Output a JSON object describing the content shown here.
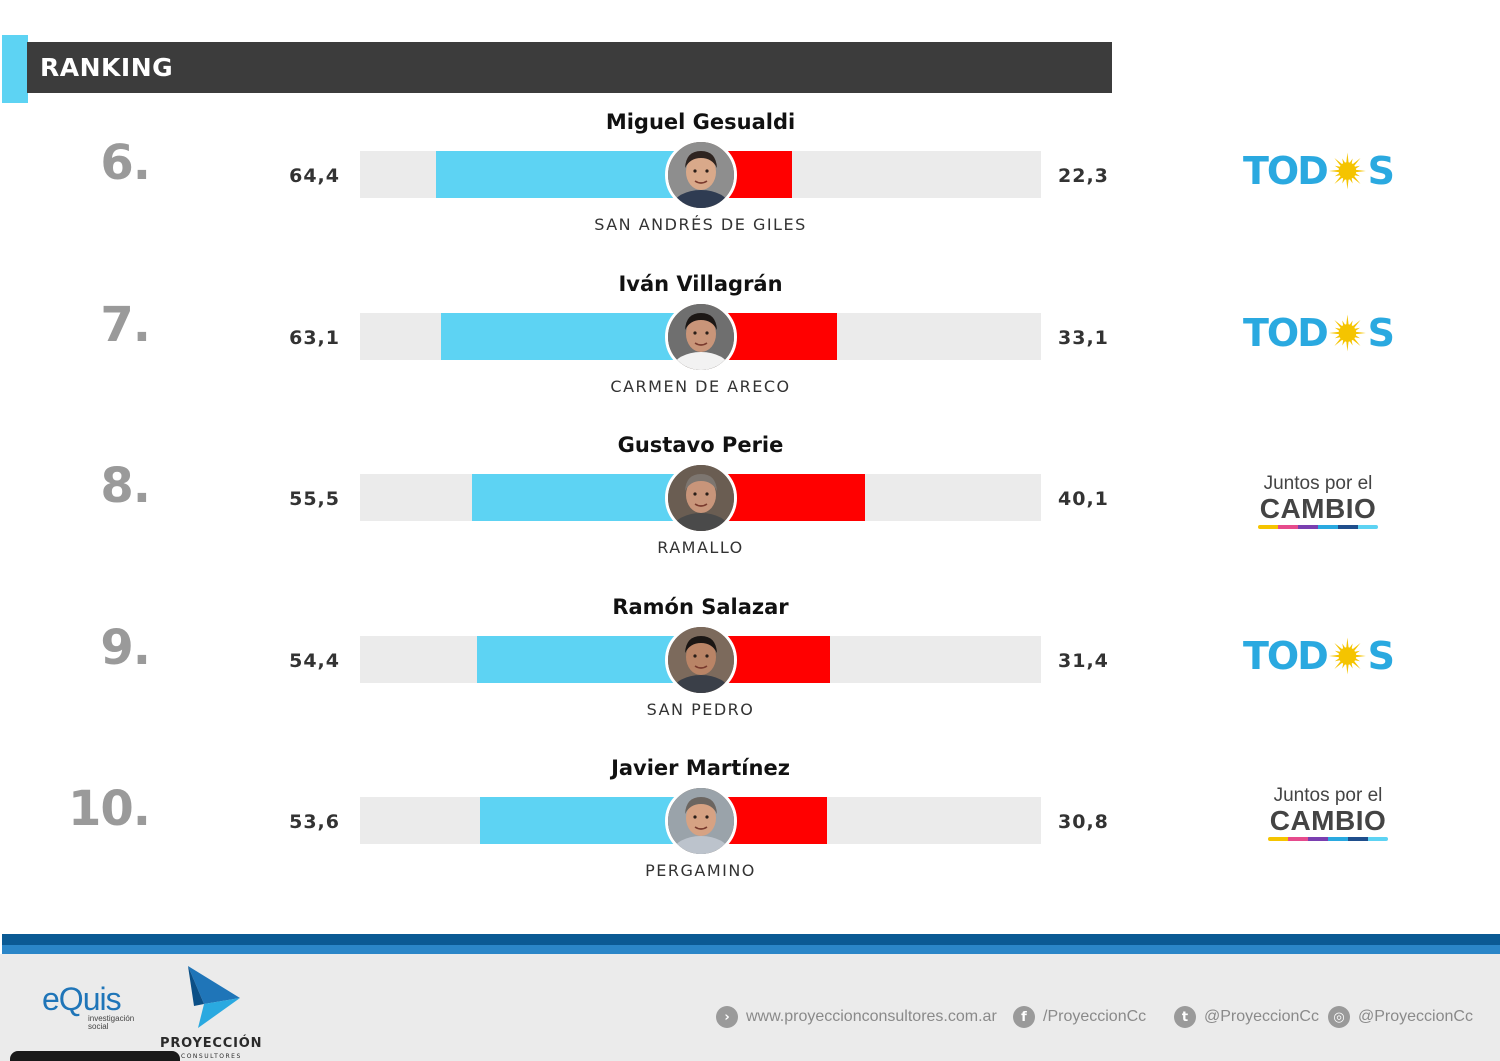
{
  "header": {
    "title": "RANKING"
  },
  "colors": {
    "positive": "#5dd3f3",
    "negative": "#ff0000",
    "track": "#ebebeb",
    "rank": "#9a9a9a"
  },
  "chart_data": {
    "type": "bar",
    "scale_max": 100,
    "rows": [
      {
        "rank": "6.",
        "name": "Miguel Gesualdi",
        "city": "SAN ANDRÉS DE GILES",
        "positive": 64.4,
        "negative": 22.3,
        "positive_label": "64,4",
        "negative_label": "22,3",
        "party": "todos"
      },
      {
        "rank": "7.",
        "name": "Iván Villagrán",
        "city": "CARMEN DE ARECO",
        "positive": 63.1,
        "negative": 33.1,
        "positive_label": "63,1",
        "negative_label": "33,1",
        "party": "todos"
      },
      {
        "rank": "8.",
        "name": "Gustavo Perie",
        "city": "RAMALLO",
        "positive": 55.5,
        "negative": 40.1,
        "positive_label": "55,5",
        "negative_label": "40,1",
        "party": "jxc"
      },
      {
        "rank": "9.",
        "name": "Ramón Salazar",
        "city": "SAN PEDRO",
        "positive": 54.4,
        "negative": 31.4,
        "positive_label": "54,4",
        "negative_label": "31,4",
        "party": "todos"
      },
      {
        "rank": "10.",
        "name": "Javier Martínez",
        "city": "PERGAMINO",
        "positive": 53.6,
        "negative": 30.8,
        "positive_label": "53,6",
        "negative_label": "30,8",
        "party": "jxc"
      }
    ]
  },
  "party_logos": {
    "todos": {
      "text_before": "TOD",
      "text_after": "S",
      "icon": "sun-icon",
      "color": "#2aa9e0",
      "sun_color": "#f5c400"
    },
    "jxc": {
      "top": "Juntos por el",
      "main": "CAMBIO",
      "stripe_colors": [
        "#f5c400",
        "#e64b8c",
        "#7a3fb0",
        "#2aa9e0",
        "#1f4e8c",
        "#5dd3f3"
      ]
    }
  },
  "footer": {
    "equis_word": "eQuis",
    "equis_sub": "investigación social",
    "proyeccion_word": "PROYECCIÓN",
    "proyeccion_sub": "CONSULTORES",
    "links": [
      {
        "icon": "chevron-right-icon",
        "glyph": "›",
        "text": "www.proyeccionconsultores.com.ar"
      },
      {
        "icon": "facebook-icon",
        "glyph": "f",
        "text": "/ProyeccionCc"
      },
      {
        "icon": "twitter-icon",
        "glyph": "t",
        "text": "@ProyeccionCc"
      },
      {
        "icon": "instagram-icon",
        "glyph": "◎",
        "text": "@ProyeccionCc"
      }
    ]
  }
}
